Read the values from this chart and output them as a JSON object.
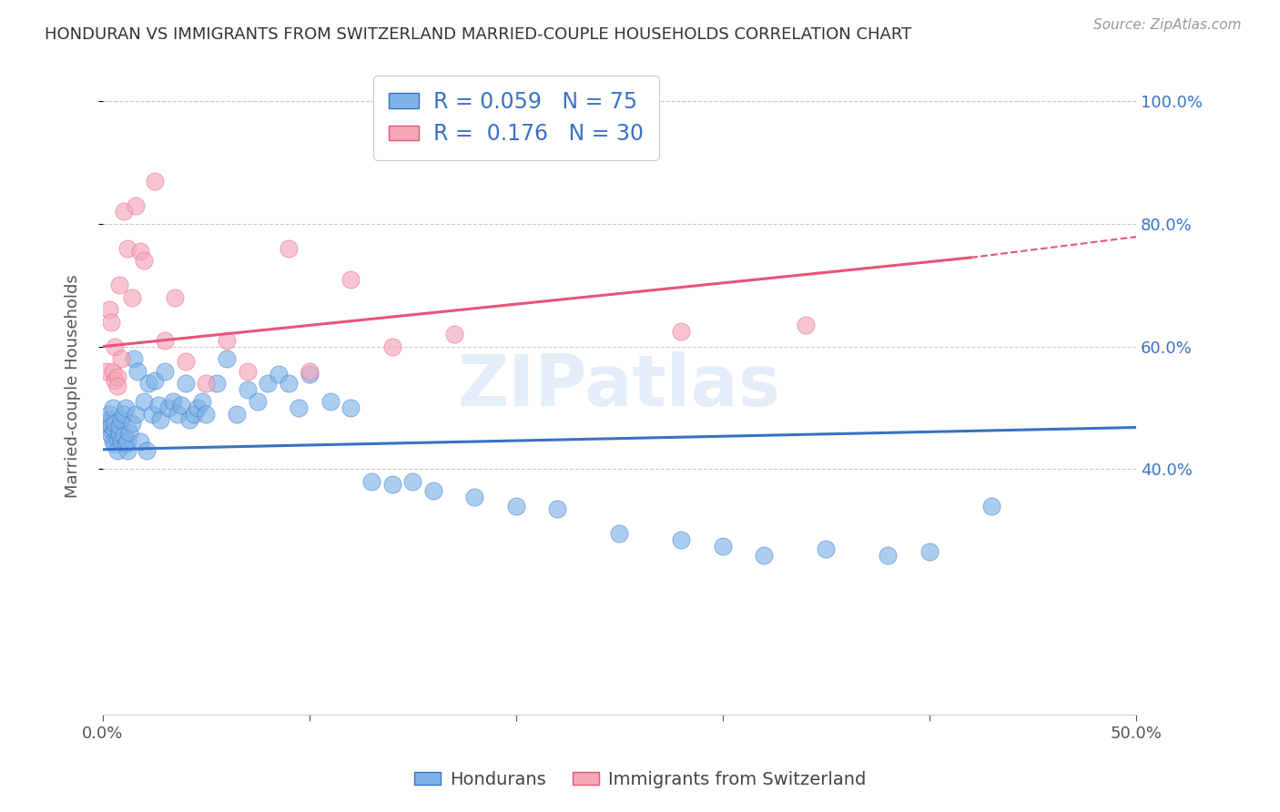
{
  "title": "HONDURAN VS IMMIGRANTS FROM SWITZERLAND MARRIED-COUPLE HOUSEHOLDS CORRELATION CHART",
  "source": "Source: ZipAtlas.com",
  "xlabel_blue": "Hondurans",
  "xlabel_pink": "Immigrants from Switzerland",
  "ylabel": "Married-couple Households",
  "R_blue": 0.059,
  "N_blue": 75,
  "R_pink": 0.176,
  "N_pink": 30,
  "xlim": [
    0.0,
    0.5
  ],
  "ylim": [
    0.0,
    1.07
  ],
  "color_blue": "#7eb3e8",
  "color_pink": "#f4a7b9",
  "line_blue": "#3a72c4",
  "line_pink": "#e8547a",
  "legend_text_color": "#3a72c4",
  "watermark": "ZIPatlas",
  "blue_x": [
    0.002,
    0.003,
    0.003,
    0.004,
    0.004,
    0.005,
    0.005,
    0.005,
    0.006,
    0.006,
    0.006,
    0.007,
    0.007,
    0.008,
    0.008,
    0.008,
    0.009,
    0.009,
    0.01,
    0.01,
    0.011,
    0.011,
    0.012,
    0.012,
    0.013,
    0.014,
    0.015,
    0.016,
    0.017,
    0.018,
    0.02,
    0.021,
    0.022,
    0.024,
    0.025,
    0.027,
    0.028,
    0.03,
    0.032,
    0.034,
    0.036,
    0.038,
    0.04,
    0.042,
    0.044,
    0.046,
    0.048,
    0.05,
    0.055,
    0.06,
    0.065,
    0.07,
    0.075,
    0.08,
    0.085,
    0.09,
    0.095,
    0.1,
    0.11,
    0.12,
    0.13,
    0.14,
    0.15,
    0.16,
    0.18,
    0.2,
    0.22,
    0.25,
    0.28,
    0.3,
    0.32,
    0.35,
    0.38,
    0.4,
    0.43
  ],
  "blue_y": [
    0.475,
    0.48,
    0.49,
    0.455,
    0.47,
    0.46,
    0.445,
    0.5,
    0.465,
    0.475,
    0.44,
    0.45,
    0.43,
    0.455,
    0.46,
    0.47,
    0.445,
    0.48,
    0.49,
    0.455,
    0.44,
    0.5,
    0.43,
    0.445,
    0.46,
    0.475,
    0.58,
    0.49,
    0.56,
    0.445,
    0.51,
    0.43,
    0.54,
    0.49,
    0.545,
    0.505,
    0.48,
    0.56,
    0.5,
    0.51,
    0.49,
    0.505,
    0.54,
    0.48,
    0.49,
    0.5,
    0.51,
    0.49,
    0.54,
    0.58,
    0.49,
    0.53,
    0.51,
    0.54,
    0.555,
    0.54,
    0.5,
    0.555,
    0.51,
    0.5,
    0.38,
    0.375,
    0.38,
    0.365,
    0.355,
    0.34,
    0.335,
    0.295,
    0.285,
    0.275,
    0.26,
    0.27,
    0.26,
    0.265,
    0.34
  ],
  "pink_x": [
    0.002,
    0.003,
    0.004,
    0.005,
    0.006,
    0.006,
    0.007,
    0.007,
    0.008,
    0.009,
    0.01,
    0.012,
    0.014,
    0.016,
    0.018,
    0.02,
    0.025,
    0.03,
    0.035,
    0.04,
    0.05,
    0.06,
    0.07,
    0.09,
    0.1,
    0.12,
    0.14,
    0.17,
    0.28,
    0.34
  ],
  "pink_y": [
    0.56,
    0.66,
    0.64,
    0.56,
    0.545,
    0.6,
    0.55,
    0.535,
    0.7,
    0.58,
    0.82,
    0.76,
    0.68,
    0.83,
    0.755,
    0.74,
    0.87,
    0.61,
    0.68,
    0.575,
    0.54,
    0.61,
    0.56,
    0.76,
    0.56,
    0.71,
    0.6,
    0.62,
    0.625,
    0.635
  ],
  "blue_trend": [
    0.0,
    0.5,
    0.432,
    0.468
  ],
  "pink_trend_solid": [
    0.0,
    0.42,
    0.6,
    0.745
  ],
  "pink_trend_dash": [
    0.42,
    0.55,
    0.745,
    0.8
  ]
}
